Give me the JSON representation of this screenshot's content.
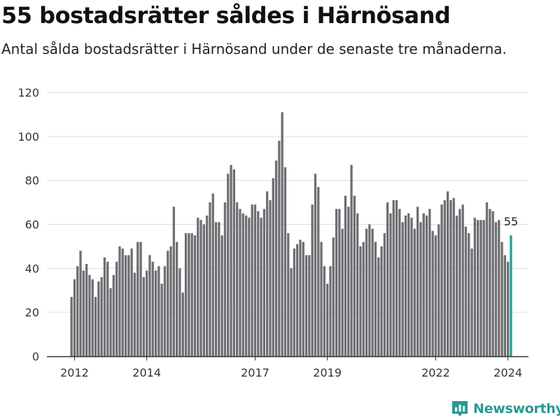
{
  "title": "55 bostadsrätter såldes i Härnösand",
  "subtitle": "Antal sålda bostadsrätter i Härnösand under de senaste tre månaderna.",
  "brand": {
    "name": "Newsworthy",
    "icon": "bar-chart-logo-icon"
  },
  "colors": {
    "bar": "#6e6e73",
    "highlight": "#2a9d90",
    "grid": "#dddddd",
    "axis": "#333333",
    "brand": "#2a9a8f"
  },
  "chart_data": {
    "type": "bar",
    "title": "55 bostadsrätter såldes i Härnösand",
    "xlabel": "",
    "ylabel": "",
    "ylim": [
      0,
      120
    ],
    "yticks": [
      0,
      20,
      40,
      60,
      80,
      100,
      120
    ],
    "xticks": [
      "2012",
      "2014",
      "2017",
      "2019",
      "2022",
      "2024"
    ],
    "grid": true,
    "start_period": "2011-12",
    "highlight_label": "55",
    "values": [
      27,
      35,
      41,
      48,
      39,
      42,
      37,
      35,
      27,
      34,
      36,
      45,
      43,
      31,
      37,
      43,
      50,
      49,
      46,
      46,
      49,
      38,
      52,
      52,
      36,
      39,
      46,
      43,
      39,
      41,
      33,
      41,
      48,
      50,
      68,
      52,
      40,
      29,
      56,
      56,
      56,
      55,
      63,
      62,
      60,
      64,
      70,
      74,
      61,
      61,
      55,
      70,
      83,
      87,
      85,
      70,
      67,
      65,
      64,
      63,
      69,
      69,
      66,
      63,
      67,
      75,
      71,
      81,
      89,
      98,
      111,
      86,
      56,
      40,
      49,
      51,
      53,
      52,
      46,
      46,
      69,
      83,
      77,
      52,
      41,
      33,
      41,
      54,
      67,
      67,
      58,
      73,
      68,
      87,
      73,
      65,
      50,
      52,
      58,
      60,
      58,
      52,
      45,
      50,
      56,
      70,
      65,
      71,
      71,
      67,
      61,
      64,
      65,
      63,
      58,
      68,
      61,
      65,
      64,
      67,
      57,
      55,
      60,
      69,
      71,
      75,
      71,
      72,
      64,
      67,
      69,
      59,
      56,
      49,
      63,
      62,
      62,
      62,
      70,
      67,
      66,
      61,
      62,
      52,
      46,
      43,
      55
    ]
  }
}
